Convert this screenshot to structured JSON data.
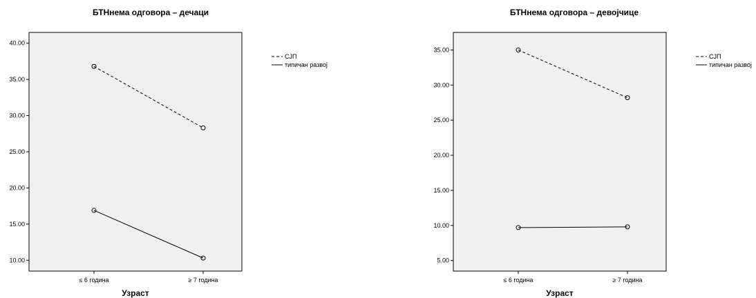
{
  "chart_data": [
    {
      "type": "line",
      "title": "БТНнема одговора – дечаци",
      "xlabel": "Узраст",
      "ylabel": "",
      "categories": [
        "≤ 6 година",
        "≥ 7 година"
      ],
      "ylim": [
        8.5,
        41.5
      ],
      "yticks": [
        "10.00",
        "15.00",
        "20.00",
        "25.00",
        "30.00",
        "35.00",
        "40.00"
      ],
      "series": [
        {
          "name": "СЈП",
          "style": "dashed",
          "values": [
            36.8,
            28.3
          ]
        },
        {
          "name": "типичан развој",
          "style": "solid",
          "values": [
            16.9,
            10.3
          ]
        }
      ],
      "grid": false,
      "legend": "right",
      "background": "#f0f0f0"
    },
    {
      "type": "line",
      "title": "БТНнема одговора – девојчице",
      "xlabel": "Узраст",
      "ylabel": "",
      "categories": [
        "≤ 6 година",
        "≥ 7 година"
      ],
      "ylim": [
        3.5,
        37.5
      ],
      "yticks": [
        "5.00",
        "10.00",
        "15.00",
        "20.00",
        "25.00",
        "30.00",
        "35.00"
      ],
      "series": [
        {
          "name": "СЈП",
          "style": "dashed",
          "values": [
            35.0,
            28.2
          ]
        },
        {
          "name": "типичан развој",
          "style": "solid",
          "values": [
            9.7,
            9.8
          ]
        }
      ],
      "grid": false,
      "legend": "right",
      "background": "#f0f0f0"
    }
  ]
}
